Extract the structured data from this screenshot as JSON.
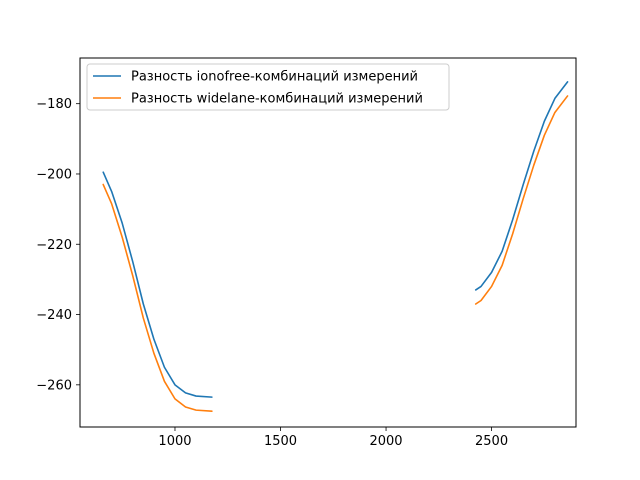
{
  "chart_data": {
    "type": "line",
    "title": "",
    "xlabel": "",
    "ylabel": "",
    "xlim": [
      550,
      2900
    ],
    "ylim": [
      -272,
      -167
    ],
    "x_ticks": [
      1000,
      1500,
      2000,
      2500
    ],
    "x_tick_labels": [
      "1000",
      "1500",
      "2000",
      "2500"
    ],
    "y_ticks": [
      -260,
      -240,
      -220,
      -200,
      -180
    ],
    "y_tick_labels": [
      "−260",
      "−240",
      "−220",
      "−200",
      "−180"
    ],
    "grid": false,
    "legend_position": "upper-left",
    "series": [
      {
        "name": "Разность ionofree-комбинаций измерений",
        "color": "#1f77b4",
        "segments": [
          [
            [
              660,
              -199.5
            ],
            [
              700,
              -205
            ],
            [
              750,
              -214
            ],
            [
              800,
              -225
            ],
            [
              850,
              -237
            ],
            [
              900,
              -247
            ],
            [
              950,
              -255
            ],
            [
              1000,
              -260
            ],
            [
              1050,
              -262.3
            ],
            [
              1100,
              -263.2
            ],
            [
              1175,
              -263.5
            ]
          ],
          [
            [
              2425,
              -233
            ],
            [
              2450,
              -232
            ],
            [
              2500,
              -228
            ],
            [
              2550,
              -222
            ],
            [
              2600,
              -213
            ],
            [
              2650,
              -203
            ],
            [
              2700,
              -193.5
            ],
            [
              2750,
              -185
            ],
            [
              2800,
              -178.5
            ],
            [
              2860,
              -173.8
            ]
          ]
        ]
      },
      {
        "name": "Разность widelane-комбинаций измерений",
        "color": "#ff7f0e",
        "segments": [
          [
            [
              660,
              -203
            ],
            [
              700,
              -208.5
            ],
            [
              750,
              -218
            ],
            [
              800,
              -229
            ],
            [
              850,
              -241
            ],
            [
              900,
              -251
            ],
            [
              950,
              -259
            ],
            [
              1000,
              -264
            ],
            [
              1050,
              -266.3
            ],
            [
              1100,
              -267.2
            ],
            [
              1175,
              -267.5
            ]
          ],
          [
            [
              2425,
              -237
            ],
            [
              2450,
              -236
            ],
            [
              2500,
              -232
            ],
            [
              2550,
              -226
            ],
            [
              2600,
              -217
            ],
            [
              2650,
              -207
            ],
            [
              2700,
              -197.5
            ],
            [
              2750,
              -189
            ],
            [
              2800,
              -182.5
            ],
            [
              2860,
              -177.8
            ]
          ]
        ]
      }
    ]
  }
}
